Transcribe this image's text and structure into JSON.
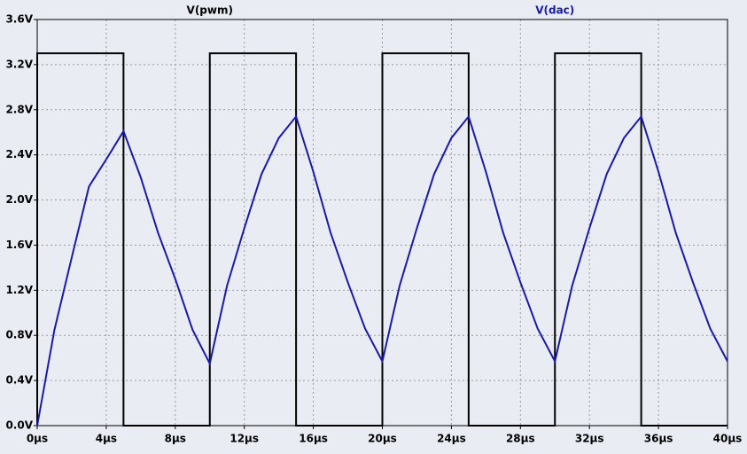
{
  "chart_data": {
    "type": "line",
    "legend": "top",
    "grid": true,
    "xlim": [
      0,
      40
    ],
    "ylim": [
      0,
      3.6
    ],
    "xticks": [
      {
        "value": 0,
        "label": "0µs"
      },
      {
        "value": 4,
        "label": "4µs"
      },
      {
        "value": 8,
        "label": "8µs"
      },
      {
        "value": 12,
        "label": "12µs"
      },
      {
        "value": 16,
        "label": "16µs"
      },
      {
        "value": 20,
        "label": "20µs"
      },
      {
        "value": 24,
        "label": "24µs"
      },
      {
        "value": 28,
        "label": "28µs"
      },
      {
        "value": 32,
        "label": "32µs"
      },
      {
        "value": 36,
        "label": "36µs"
      },
      {
        "value": 40,
        "label": "40µs"
      }
    ],
    "yticks": [
      {
        "value": 0,
        "label": "0.0V"
      },
      {
        "value": 0.4,
        "label": "0.4V"
      },
      {
        "value": 0.8,
        "label": "0.8V"
      },
      {
        "value": 1.2,
        "label": "1.2V"
      },
      {
        "value": 1.6,
        "label": "1.6V"
      },
      {
        "value": 2.0,
        "label": "2.0V"
      },
      {
        "value": 2.4,
        "label": "2.4V"
      },
      {
        "value": 2.8,
        "label": "2.8V"
      },
      {
        "value": 3.2,
        "label": "3.2V"
      },
      {
        "value": 3.6,
        "label": "3.6V"
      }
    ],
    "series": [
      {
        "name": "V(pwm)",
        "color": "#000000",
        "x": [
          0,
          0,
          5,
          5,
          10,
          10,
          15,
          15,
          20,
          20,
          25,
          25,
          30,
          30,
          35,
          35,
          40
        ],
        "values": [
          0,
          3.3,
          3.3,
          0,
          0,
          3.3,
          3.3,
          0,
          0,
          3.3,
          3.3,
          0,
          0,
          3.3,
          3.3,
          0,
          0
        ]
      },
      {
        "name": "V(dac)",
        "color": "#1a1aa8",
        "x": [
          0,
          1,
          2,
          3,
          4,
          5,
          6,
          7,
          8,
          9,
          10,
          11,
          12,
          13,
          14,
          15,
          16,
          17,
          18,
          19,
          20,
          21,
          22,
          23,
          24,
          25,
          26,
          27,
          28,
          29,
          30,
          31,
          32,
          33,
          34,
          35,
          36,
          37,
          38,
          39,
          40
        ],
        "values": [
          0,
          0.85,
          1.49,
          2.12,
          2.36,
          2.61,
          2.2,
          1.71,
          1.3,
          0.85,
          0.55,
          1.24,
          1.75,
          2.23,
          2.55,
          2.74,
          2.25,
          1.71,
          1.27,
          0.86,
          0.57,
          1.24,
          1.75,
          2.23,
          2.55,
          2.74,
          2.25,
          1.71,
          1.27,
          0.86,
          0.57,
          1.24,
          1.75,
          2.23,
          2.55,
          2.74,
          2.25,
          1.71,
          1.27,
          0.86,
          0.57
        ]
      }
    ]
  }
}
